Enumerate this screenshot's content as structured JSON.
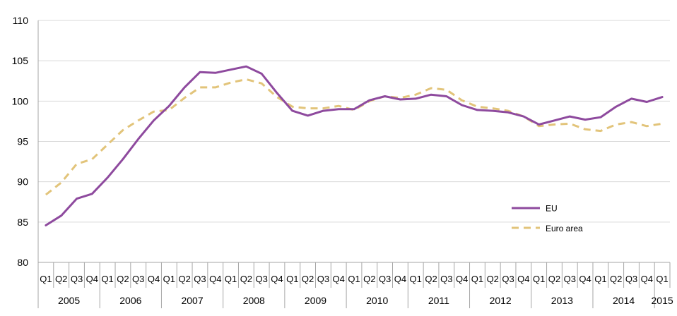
{
  "chart_data": {
    "type": "line",
    "title": "",
    "xlabel": "",
    "ylabel": "",
    "ylim": [
      80,
      110
    ],
    "yticks": [
      "80",
      "85",
      "90",
      "95",
      "100",
      "105",
      "110"
    ],
    "grid": true,
    "legend_position": "lower-right",
    "years": [
      {
        "label": "2005",
        "quarters": 4
      },
      {
        "label": "2006",
        "quarters": 4
      },
      {
        "label": "2007",
        "quarters": 4
      },
      {
        "label": "2008",
        "quarters": 4
      },
      {
        "label": "2009",
        "quarters": 4
      },
      {
        "label": "2010",
        "quarters": 4
      },
      {
        "label": "2011",
        "quarters": 4
      },
      {
        "label": "2012",
        "quarters": 4
      },
      {
        "label": "2013",
        "quarters": 4
      },
      {
        "label": "2014",
        "quarters": 4
      },
      {
        "label": "2015",
        "quarters": 1
      }
    ],
    "quarter_labels": [
      "Q1",
      "Q2",
      "Q3",
      "Q4",
      "Q1",
      "Q2",
      "Q3",
      "Q4",
      "Q1",
      "Q2",
      "Q3",
      "Q4",
      "Q1",
      "Q2",
      "Q3",
      "Q4",
      "Q1",
      "Q2",
      "Q3",
      "Q4",
      "Q1",
      "Q2",
      "Q3",
      "Q4",
      "Q1",
      "Q2",
      "Q3",
      "Q4",
      "Q1",
      "Q2",
      "Q3",
      "Q4",
      "Q1",
      "Q2",
      "Q3",
      "Q4",
      "Q1",
      "Q2",
      "Q3",
      "Q4",
      "Q1"
    ],
    "series": [
      {
        "name": "EU",
        "color": "#8e4a9e",
        "style": "solid",
        "values": [
          84.6,
          85.8,
          87.9,
          88.5,
          90.5,
          92.8,
          95.3,
          97.6,
          99.4,
          101.7,
          103.6,
          103.5,
          103.9,
          104.3,
          103.4,
          101.0,
          98.8,
          98.2,
          98.8,
          99.0,
          99.0,
          100.1,
          100.6,
          100.2,
          100.3,
          100.8,
          100.6,
          99.5,
          98.9,
          98.8,
          98.6,
          98.1,
          97.1,
          97.6,
          98.1,
          97.7,
          98.0,
          99.3,
          100.3,
          99.9,
          100.5
        ]
      },
      {
        "name": "Euro area",
        "color": "#e2c47a",
        "style": "dashed",
        "values": [
          88.4,
          89.9,
          92.2,
          92.8,
          94.6,
          96.4,
          97.6,
          98.7,
          98.9,
          100.4,
          101.7,
          101.7,
          102.3,
          102.7,
          102.2,
          100.5,
          99.3,
          99.1,
          99.1,
          99.4,
          98.9,
          100.0,
          100.6,
          100.4,
          100.8,
          101.6,
          101.4,
          100.1,
          99.3,
          99.1,
          98.8,
          98.1,
          96.9,
          97.1,
          97.2,
          96.5,
          96.3,
          97.1,
          97.4,
          96.9,
          97.2
        ]
      }
    ]
  }
}
